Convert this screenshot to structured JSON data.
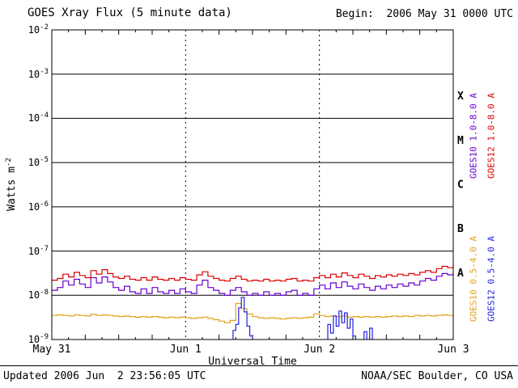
{
  "header": {
    "title": "GOES Xray Flux (5 minute data)",
    "begin": "Begin:  2006 May 31 0000 UTC"
  },
  "axes": {
    "xlabel": "Universal Time",
    "ylabel_base": "Watts m",
    "ylabel_exp": "-2"
  },
  "footer": {
    "updated": "Updated 2006 Jun  2 23:56:05 UTC",
    "source": "NOAA/SEC Boulder, CO USA"
  },
  "chart_data": {
    "type": "line",
    "title": "GOES Xray Flux (5 minute data)",
    "xlabel": "Universal Time",
    "ylabel": "Watts m-2 (log scale)",
    "x_hours": [
      0,
      72
    ],
    "y_exp": [
      -9,
      -2
    ],
    "grid": "horizontal solid per decade, vertical dashed at day boundaries",
    "legend_position": "right, rotated",
    "x_ticks": [
      {
        "hours": 0,
        "label": "May 31"
      },
      {
        "hours": 24,
        "label": "Jun 1"
      },
      {
        "hours": 48,
        "label": "Jun 2"
      },
      {
        "hours": 72,
        "label": "Jun 3"
      }
    ],
    "y_ticks_exp": [
      -2,
      -3,
      -4,
      -5,
      -6,
      -7,
      -8,
      -9
    ],
    "day_lines_hours": [
      24,
      48
    ],
    "flare_classes": [
      {
        "label": "X",
        "exp_mid": -3.5
      },
      {
        "label": "M",
        "exp_mid": -4.5
      },
      {
        "label": "C",
        "exp_mid": -5.5
      },
      {
        "label": "B",
        "exp_mid": -6.5
      },
      {
        "label": "A",
        "exp_mid": -7.5
      }
    ],
    "series": [
      {
        "name": "GOES10 1.0-8.0 A",
        "color": "#6600cc",
        "scale": 1e-08,
        "x_start": 0,
        "x_step": 1,
        "values": [
          1.3,
          1.5,
          2.1,
          1.7,
          2.3,
          1.8,
          1.5,
          2.5,
          1.9,
          2.6,
          2.0,
          1.5,
          1.3,
          1.6,
          1.2,
          1.1,
          1.4,
          1.1,
          1.5,
          1.2,
          1.1,
          1.3,
          1.1,
          1.4,
          1.2,
          1.1,
          1.7,
          2.2,
          1.5,
          1.3,
          1.1,
          1.0,
          1.3,
          1.5,
          1.2,
          1.0,
          1.1,
          1.0,
          1.2,
          1.0,
          1.1,
          1.0,
          1.2,
          1.3,
          1.0,
          1.1,
          1.0,
          1.4,
          1.7,
          1.4,
          1.9,
          1.5,
          2.0,
          1.6,
          1.4,
          1.8,
          1.5,
          1.3,
          1.6,
          1.4,
          1.7,
          1.5,
          1.8,
          1.6,
          1.9,
          1.7,
          2.1,
          2.4,
          2.2,
          2.7,
          3.1,
          2.9,
          3.4
        ]
      },
      {
        "name": "GOES12 1.0-8.0 A",
        "color": "#dd0000",
        "scale": 1e-08,
        "x_start": 0,
        "x_step": 1,
        "values": [
          2.2,
          2.4,
          3.0,
          2.6,
          3.3,
          2.8,
          2.5,
          3.6,
          3.0,
          3.8,
          3.1,
          2.6,
          2.4,
          2.7,
          2.3,
          2.2,
          2.5,
          2.2,
          2.6,
          2.3,
          2.2,
          2.4,
          2.2,
          2.5,
          2.3,
          2.2,
          2.9,
          3.4,
          2.7,
          2.4,
          2.2,
          2.1,
          2.4,
          2.7,
          2.3,
          2.1,
          2.2,
          2.1,
          2.3,
          2.1,
          2.2,
          2.1,
          2.3,
          2.4,
          2.1,
          2.2,
          2.1,
          2.5,
          2.8,
          2.5,
          3.0,
          2.6,
          3.2,
          2.8,
          2.5,
          3.0,
          2.7,
          2.4,
          2.8,
          2.6,
          2.9,
          2.7,
          3.0,
          2.8,
          3.1,
          2.9,
          3.3,
          3.6,
          3.3,
          4.0,
          4.5,
          4.2,
          5.0
        ]
      },
      {
        "name": "GOES10 0.5-4.0 A",
        "color": "#e2a218",
        "scale": 1e-09,
        "x_start": 0,
        "x_step": 1,
        "values": [
          3.5,
          3.6,
          3.5,
          3.4,
          3.6,
          3.5,
          3.4,
          3.7,
          3.5,
          3.6,
          3.5,
          3.4,
          3.3,
          3.4,
          3.3,
          3.2,
          3.3,
          3.2,
          3.3,
          3.2,
          3.1,
          3.2,
          3.1,
          3.2,
          3.1,
          3.0,
          3.1,
          3.2,
          3.0,
          2.8,
          2.6,
          2.4,
          2.7,
          6.5,
          5.0,
          3.8,
          3.3,
          3.1,
          3.0,
          3.1,
          3.0,
          2.9,
          3.0,
          3.1,
          3.0,
          3.1,
          3.2,
          3.8,
          3.5,
          3.3,
          3.4,
          3.3,
          3.4,
          3.2,
          3.3,
          3.2,
          3.3,
          3.2,
          3.3,
          3.2,
          3.3,
          3.4,
          3.3,
          3.4,
          3.3,
          3.5,
          3.4,
          3.5,
          3.4,
          3.5,
          3.6,
          3.5,
          3.6
        ]
      },
      {
        "name": "GOES12 0.5-4.0 A",
        "color": "#2222dd",
        "scale": 1e-09,
        "points": [
          [
            0,
            0.7
          ],
          [
            31,
            0.7
          ],
          [
            32,
            0.9
          ],
          [
            32.5,
            1.6
          ],
          [
            33,
            2.2
          ],
          [
            33.5,
            5.2
          ],
          [
            34,
            9.0
          ],
          [
            34.5,
            4.2
          ],
          [
            35,
            2.0
          ],
          [
            35.5,
            1.2
          ],
          [
            36,
            0.8
          ],
          [
            37,
            0.7
          ],
          [
            48,
            0.7
          ],
          [
            49,
            0.9
          ],
          [
            49.5,
            2.2
          ],
          [
            50,
            1.4
          ],
          [
            50.5,
            3.4
          ],
          [
            51,
            2.0
          ],
          [
            51.5,
            4.4
          ],
          [
            52,
            2.4
          ],
          [
            52.5,
            4.0
          ],
          [
            53,
            1.8
          ],
          [
            53.5,
            2.9
          ],
          [
            54,
            1.2
          ],
          [
            54.5,
            0.8
          ],
          [
            55,
            0.7
          ],
          [
            56,
            1.5
          ],
          [
            56.5,
            0.8
          ],
          [
            57,
            1.8
          ],
          [
            57.5,
            0.9
          ],
          [
            58,
            0.7
          ],
          [
            72,
            0.7
          ]
        ]
      }
    ]
  }
}
